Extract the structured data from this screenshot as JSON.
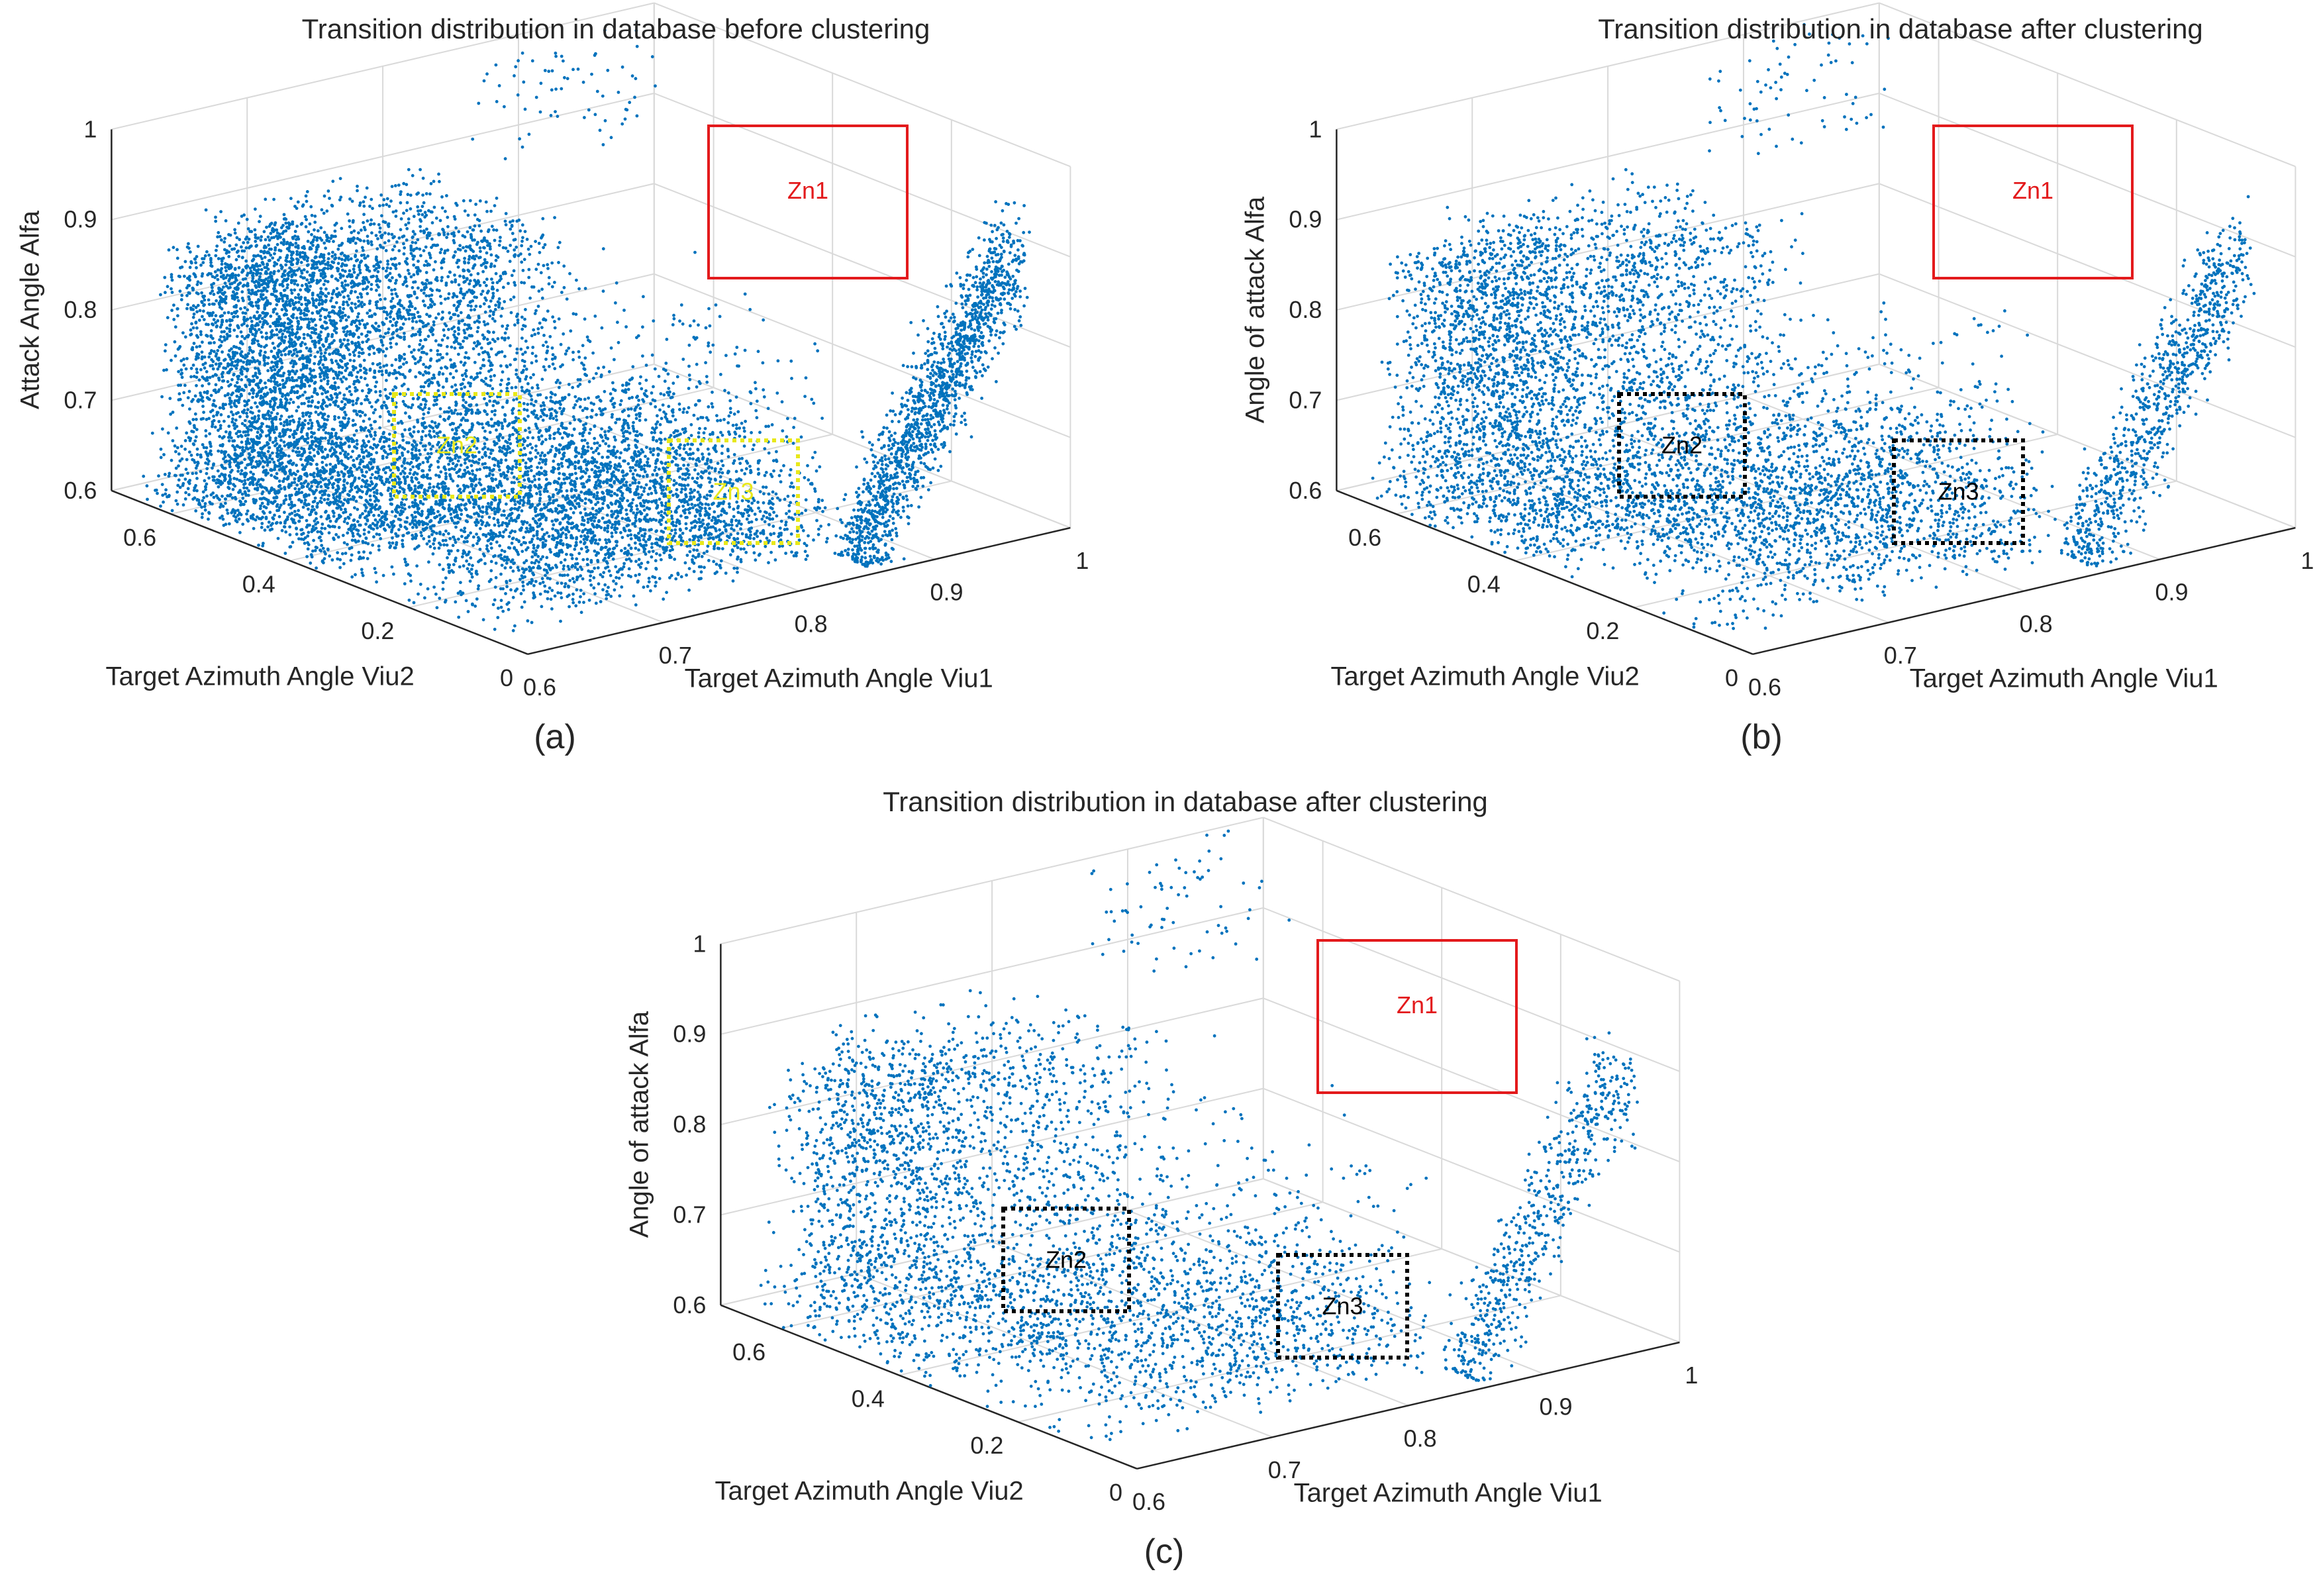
{
  "colors": {
    "points": "#0072BD",
    "grid": "#d9d9d9",
    "axis": "#262626",
    "zn1_box": "#e31a1c",
    "zn_yellow": "#e8e81a",
    "zn_black": "#000000"
  },
  "chart_data": [
    {
      "id": "a",
      "type": "scatter3d",
      "title": "Transition distribution in database before clustering",
      "caption": "(a)",
      "xlabel": "Target Azimuth Angle Viu1",
      "ylabel": "Target Azimuth Angle Viu2",
      "zlabel": "Attack Angle Alfa",
      "xlim": [
        0.6,
        1.0
      ],
      "ylim": [
        0.0,
        0.7
      ],
      "zlim": [
        0.6,
        1.0
      ],
      "xticks": [
        "0.6",
        "0.7",
        "0.8",
        "0.9",
        "1"
      ],
      "yticks": [
        "0",
        "0.2",
        "0.4",
        "0.6"
      ],
      "zticks": [
        "0.6",
        "0.7",
        "0.8",
        "0.9",
        "1"
      ],
      "density": "high",
      "seed": 11,
      "zones": [
        {
          "label": "Zn1",
          "style": "solid",
          "color_key": "zn1_box"
        },
        {
          "label": "Zn2",
          "style": "dotted",
          "color_key": "zn_yellow"
        },
        {
          "label": "Zn3",
          "style": "dotted",
          "color_key": "zn_yellow"
        }
      ]
    },
    {
      "id": "b",
      "type": "scatter3d",
      "title": "Transition distribution in database after clustering",
      "caption": "(b)",
      "xlabel": "Target Azimuth Angle Viu1",
      "ylabel": "Target Azimuth Angle Viu2",
      "zlabel": "Angle of attack Alfa",
      "xlim": [
        0.6,
        1.0
      ],
      "ylim": [
        0.0,
        0.7
      ],
      "zlim": [
        0.6,
        1.0
      ],
      "xticks": [
        "0.6",
        "0.7",
        "0.8",
        "0.9",
        "1"
      ],
      "yticks": [
        "0",
        "0.2",
        "0.4",
        "0.6"
      ],
      "zticks": [
        "0.6",
        "0.7",
        "0.8",
        "0.9",
        "1"
      ],
      "density": "medium",
      "seed": 23,
      "zones": [
        {
          "label": "Zn1",
          "style": "solid",
          "color_key": "zn1_box"
        },
        {
          "label": "Zn2",
          "style": "dotted",
          "color_key": "zn_black"
        },
        {
          "label": "Zn3",
          "style": "dotted",
          "color_key": "zn_black"
        }
      ]
    },
    {
      "id": "c",
      "type": "scatter3d",
      "title": "Transition distribution in database after clustering",
      "caption": "(c)",
      "xlabel": "Target Azimuth Angle Viu1",
      "ylabel": "Target Azimuth Angle Viu2",
      "zlabel": "Angle of attack Alfa",
      "xlim": [
        0.6,
        1.0
      ],
      "ylim": [
        0.0,
        0.7
      ],
      "zlim": [
        0.6,
        1.0
      ],
      "xticks": [
        "0.6",
        "0.7",
        "0.8",
        "0.9",
        "1"
      ],
      "yticks": [
        "0",
        "0.2",
        "0.4",
        "0.6"
      ],
      "zticks": [
        "0.6",
        "0.7",
        "0.8",
        "0.9",
        "1"
      ],
      "density": "low",
      "seed": 37,
      "zones": [
        {
          "label": "Zn1",
          "style": "solid",
          "color_key": "zn1_box"
        },
        {
          "label": "Zn2",
          "style": "dotted",
          "color_key": "zn_black"
        },
        {
          "label": "Zn3",
          "style": "dotted",
          "color_key": "zn_black"
        }
      ]
    }
  ]
}
